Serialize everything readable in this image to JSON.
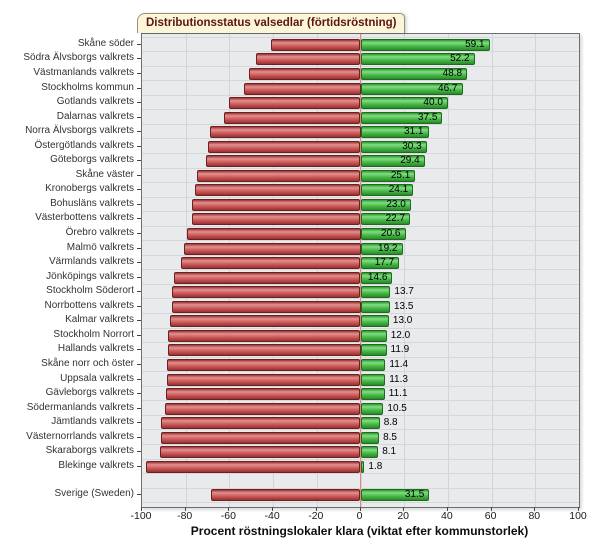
{
  "chart_data": {
    "type": "bar",
    "orientation": "horizontal-diverging",
    "title": "Distributionsstatus valsedlar (förtidsröstning)",
    "xlabel": "Procent röstningslokaler klara (viktat efter kommunstorlek)",
    "xlim": [
      -100,
      100
    ],
    "xticks": [
      -100,
      -80,
      -60,
      -40,
      -20,
      0,
      20,
      40,
      60,
      80,
      100
    ],
    "grid": true,
    "legend": "none",
    "negative_series_rule": "red bar extends left by (100 - value)",
    "categories": [
      "Skåne söder",
      "Södra Älvsborgs valkrets",
      "Västmanlands valkrets",
      "Stockholms kommun",
      "Gotlands valkrets",
      "Dalarnas valkrets",
      "Norra Älvsborgs valkrets",
      "Östergötlands valkrets",
      "Göteborgs valkrets",
      "Skåne väster",
      "Kronobergs valkrets",
      "Bohusläns valkrets",
      "Västerbottens valkrets",
      "Örebro valkrets",
      "Malmö valkrets",
      "Värmlands valkrets",
      "Jönköpings valkrets",
      "Stockholm Söderort",
      "Norrbottens valkrets",
      "Kalmar valkrets",
      "Stockholm Norrort",
      "Hallands valkrets",
      "Skåne norr och öster",
      "Uppsala valkrets",
      "Gävleborgs valkrets",
      "Södermanlands valkrets",
      "Jämtlands valkrets",
      "Västernorrlands valkrets",
      "Skaraborgs valkrets",
      "Blekinge valkrets"
    ],
    "values": [
      59.1,
      52.2,
      48.8,
      46.7,
      40.0,
      37.5,
      31.1,
      30.3,
      29.4,
      25.1,
      24.1,
      23.0,
      22.7,
      20.6,
      19.2,
      17.7,
      14.6,
      13.7,
      13.5,
      13.0,
      12.0,
      11.9,
      11.4,
      11.3,
      11.1,
      10.5,
      8.8,
      8.5,
      8.1,
      1.8
    ],
    "summary": {
      "label": "Sverige (Sweden)",
      "value": 31.5
    },
    "colors": {
      "positive_bar": "#46b846",
      "positive_border": "#1d6b1d",
      "negative_bar": "#cc5a5a",
      "negative_border": "#6d2020",
      "zero_line": "#ee8080",
      "plot_background": "#e8eaec",
      "gridline": "#d2d5d8",
      "title_background": "#fcf6d8",
      "title_text": "#5c1515"
    }
  }
}
